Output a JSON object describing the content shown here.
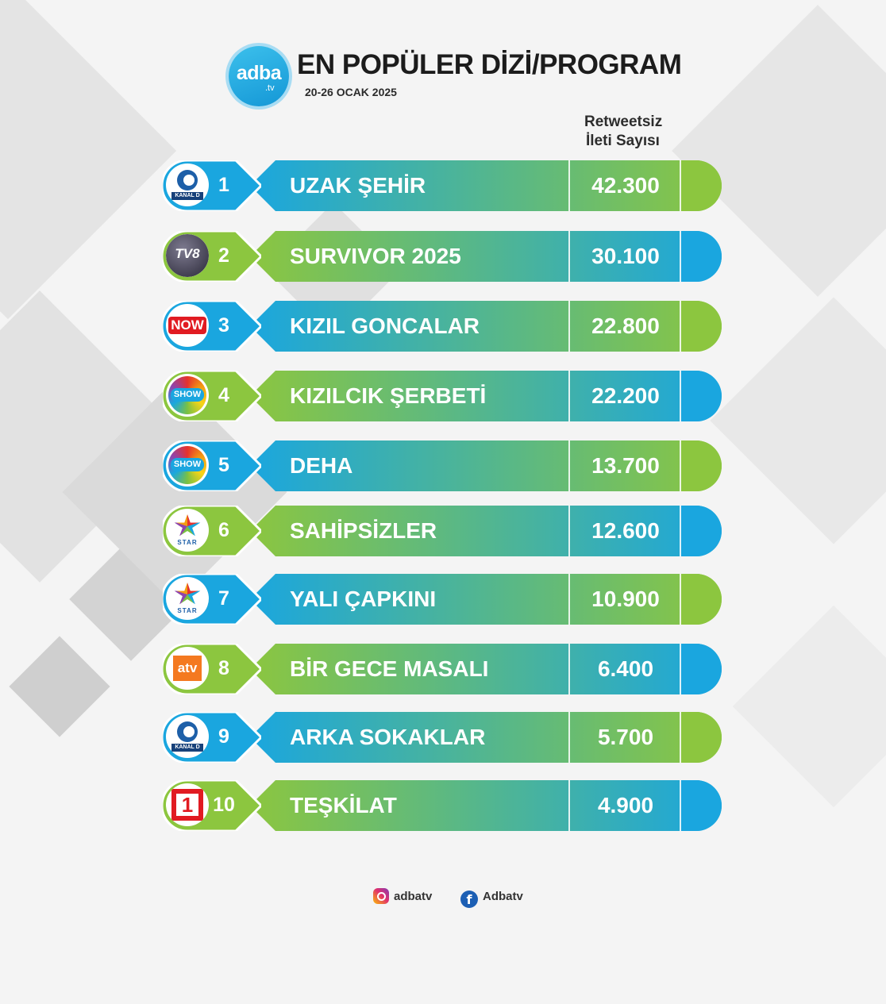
{
  "header": {
    "logo_text": "adba",
    "logo_sub": ".tv",
    "title": "EN POPÜLER DİZİ/PROGRAM",
    "date_range": "20-26 OCAK 2025"
  },
  "column_header": {
    "line1": "Retweetsiz",
    "line2": "İleti Sayısı"
  },
  "colors": {
    "green": "#8cc63f",
    "blue": "#1aa6df",
    "teal": "#3fb8a8"
  },
  "rankings": [
    {
      "rank": "1",
      "title": "UZAK ŞEHİR",
      "value": "42.300",
      "channel": "Kanal D",
      "channel_logo": "kanal-d-logo",
      "channel_logo_text": "KANAL D",
      "style": "a"
    },
    {
      "rank": "2",
      "title": "SURVIVOR 2025",
      "value": "30.100",
      "channel": "TV8",
      "channel_logo": "tv8-logo",
      "channel_logo_text": "TV8",
      "style": "b"
    },
    {
      "rank": "3",
      "title": "KIZIL GONCALAR",
      "value": "22.800",
      "channel": "NOW",
      "channel_logo": "now-logo",
      "channel_logo_text": "NOW",
      "style": "a"
    },
    {
      "rank": "4",
      "title": "KIZILCIK ŞERBETİ",
      "value": "22.200",
      "channel": "Show TV",
      "channel_logo": "show-tv-logo",
      "channel_logo_text": "SHOW",
      "style": "b"
    },
    {
      "rank": "5",
      "title": "DEHA",
      "value": "13.700",
      "channel": "Show TV",
      "channel_logo": "show-tv-logo",
      "channel_logo_text": "SHOW",
      "style": "a"
    },
    {
      "rank": "6",
      "title": "SAHİPSİZLER",
      "value": "12.600",
      "channel": "Star TV",
      "channel_logo": "star-tv-logo",
      "channel_logo_text": "STAR",
      "style": "b"
    },
    {
      "rank": "7",
      "title": "YALI ÇAPKINI",
      "value": "10.900",
      "channel": "Star TV",
      "channel_logo": "star-tv-logo",
      "channel_logo_text": "STAR",
      "style": "a"
    },
    {
      "rank": "8",
      "title": "BİR GECE MASALI",
      "value": "6.400",
      "channel": "ATV",
      "channel_logo": "atv-logo",
      "channel_logo_text": "atv",
      "style": "b"
    },
    {
      "rank": "9",
      "title": "ARKA SOKAKLAR",
      "value": "5.700",
      "channel": "Kanal D",
      "channel_logo": "kanal-d-logo",
      "channel_logo_text": "KANAL D",
      "style": "a"
    },
    {
      "rank": "10",
      "title": "TEŞKİLAT",
      "value": "4.900",
      "channel": "TRT 1",
      "channel_logo": "trt1-logo",
      "channel_logo_text": "1",
      "style": "b"
    }
  ],
  "footer": {
    "instagram_icon": "instagram-icon",
    "instagram": "adbatv",
    "facebook_icon": "facebook-icon",
    "facebook": "Adbatv"
  }
}
